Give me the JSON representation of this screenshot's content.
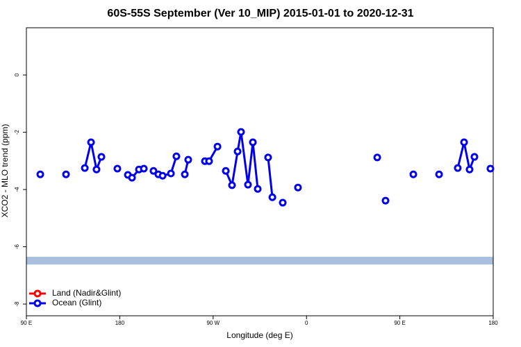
{
  "chart_data": {
    "type": "line",
    "title": "60S-55S September (Ver 10_MIP)   2015-01-01 to 2020-12-31",
    "xlabel": "Longitude (deg E)",
    "ylabel": "XCO2 - MLO trend (ppm)",
    "xlim": [
      90,
      540
    ],
    "ylim": [
      -8.41,
      1.65
    ],
    "xticks": [
      {
        "value": 90,
        "label": "90 E"
      },
      180,
      {
        "value": 270,
        "label": "90 W"
      },
      {
        "value": 360,
        "label": "0"
      },
      {
        "value": 450,
        "label": "90 E"
      },
      {
        "value": 540,
        "label": "180"
      }
    ],
    "yticks": [
      0,
      -2,
      -4,
      -6,
      -8
    ],
    "legend": "bottom-left",
    "band": {
      "ylim": [
        -6.62,
        -6.35
      ],
      "color": "#a9bfdf"
    },
    "series": [
      {
        "name": "Land (Nadir&Glint)",
        "color": "#ff0000",
        "x": [],
        "values": []
      },
      {
        "name": "Ocean (Glint)",
        "color": "#0000ee",
        "x": [
          103.4,
          null,
          128.2,
          null,
          146.3,
          152.3,
          157.6,
          162.3,
          null,
          177.7,
          null,
          187.8,
          191.8,
          198.5,
          203.2,
          null,
          212.5,
          217.2,
          221.3,
          229.3,
          234.6,
          null,
          242.7,
          246.0,
          null,
          262.1,
          266.1,
          274.2,
          null,
          282.2,
          288.2,
          293.6,
          296.9,
          303.6,
          308.3,
          313.0,
          null,
          323.0,
          327.1,
          null,
          337.1,
          null,
          351.8,
          null,
          428.2,
          null,
          436.2,
          null,
          463.0,
          null,
          487.8,
          null,
          505.8,
          511.9,
          517.2,
          521.9,
          null,
          537.3
        ],
        "values": [
          -3.47,
          null,
          -3.47,
          null,
          -3.25,
          -2.35,
          -3.3,
          -2.86,
          null,
          -3.27,
          null,
          -3.49,
          -3.59,
          -3.3,
          -3.27,
          null,
          -3.35,
          -3.47,
          -3.52,
          -3.44,
          -2.84,
          null,
          -3.47,
          -2.96,
          null,
          -3.01,
          -3.01,
          -2.5,
          null,
          -3.35,
          -3.85,
          -2.67,
          -1.99,
          -3.83,
          -2.35,
          -3.98,
          null,
          -2.88,
          -4.27,
          null,
          -4.46,
          null,
          -3.93,
          null,
          -2.88,
          null,
          -4.39,
          null,
          -3.47,
          null,
          -3.47,
          null,
          -3.25,
          -2.35,
          -3.3,
          -2.86,
          null,
          -3.27
        ]
      }
    ]
  }
}
